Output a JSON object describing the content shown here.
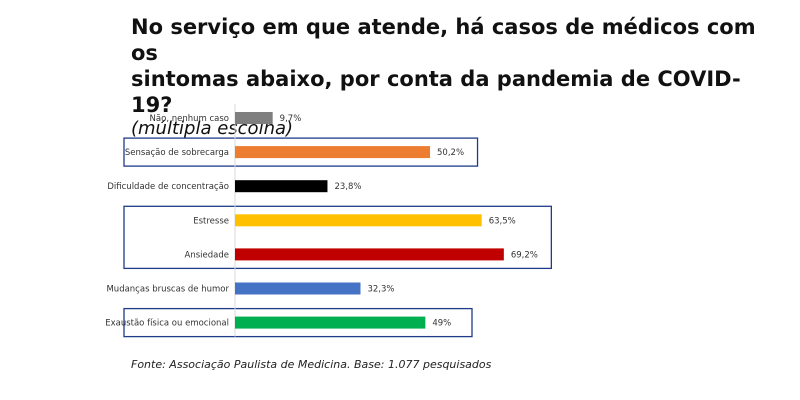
{
  "header": {
    "title_line1": "No serviço em que atende, há casos de médicos com os",
    "title_line2": "sintomas abaixo, por conta da pandemia de COVID-19?",
    "subtitle": "(múltipla escolha)"
  },
  "footer": {
    "source": "Fonte: Associação Paulista de Medicina. Base: 1.077 pesquisados"
  },
  "chart_data": {
    "type": "bar",
    "orientation": "horizontal",
    "title": "No serviço em que atende, há casos de médicos com os sintomas abaixo, por conta da pandemia de COVID-19?",
    "subtitle": "(múltipla escolha)",
    "categories": [
      "Não, nenhum caso",
      "Sensação de sobrecarga",
      "Dificuldade de concentração",
      "Estresse",
      "Ansiedade",
      "Mudanças bruscas de humor",
      "Exaustão física ou emocional"
    ],
    "values": [
      9.7,
      50.2,
      23.8,
      63.5,
      69.2,
      32.3,
      49
    ],
    "value_labels": [
      "9,7%",
      "50,2%",
      "23,8%",
      "63,5%",
      "69,2%",
      "32,3%",
      "49%"
    ],
    "colors": [
      "#7f7f7f",
      "#ed7d31",
      "#000000",
      "#ffc000",
      "#c00000",
      "#4472c4",
      "#00b050"
    ],
    "highlight_groups": [
      [
        1
      ],
      [
        3,
        4
      ],
      [
        6
      ]
    ],
    "highlight_color": "#1f3c88",
    "xlim": [
      0,
      100
    ],
    "grid": false
  }
}
